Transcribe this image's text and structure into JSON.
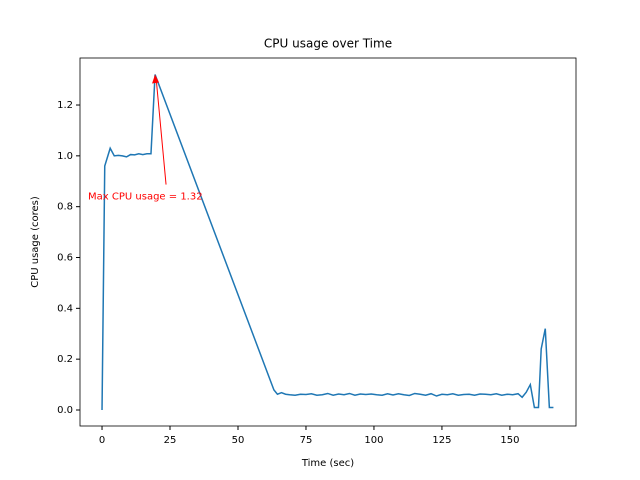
{
  "chart_data": {
    "type": "line",
    "title": "CPU usage over Time",
    "x_label": "Time (sec)",
    "y_label": "CPU usage (cores)",
    "x": [
      0,
      1,
      3,
      4.5,
      6,
      7.5,
      9,
      10.5,
      12,
      13.5,
      15,
      16.5,
      18,
      19.5,
      63.2,
      64.5,
      66,
      67.5,
      69,
      71,
      73,
      75,
      77,
      79,
      81,
      83,
      85,
      87,
      89,
      91,
      93,
      95,
      97,
      99,
      101,
      103,
      105,
      107,
      109,
      111,
      113,
      115,
      117,
      119,
      121,
      123,
      125,
      127,
      129,
      131,
      133,
      135,
      137,
      139,
      141,
      143,
      145,
      147,
      149,
      151,
      153,
      154.5,
      156,
      157.5,
      159,
      160.5,
      161.5,
      163,
      164.5,
      166
    ],
    "series": [
      {
        "name": "CPU usage",
        "color": "#1f77b4",
        "values": [
          0,
          0.96,
          1.03,
          1.0,
          1.002,
          1.0,
          0.996,
          1.005,
          1.004,
          1.008,
          1.005,
          1.008,
          1.008,
          1.32,
          0.079,
          0.062,
          0.068,
          0.062,
          0.06,
          0.058,
          0.062,
          0.061,
          0.064,
          0.058,
          0.06,
          0.065,
          0.058,
          0.063,
          0.06,
          0.065,
          0.058,
          0.063,
          0.061,
          0.063,
          0.06,
          0.058,
          0.064,
          0.059,
          0.064,
          0.06,
          0.057,
          0.065,
          0.062,
          0.058,
          0.064,
          0.055,
          0.062,
          0.06,
          0.064,
          0.058,
          0.061,
          0.062,
          0.058,
          0.063,
          0.062,
          0.06,
          0.064,
          0.058,
          0.062,
          0.06,
          0.064,
          0.05,
          0.07,
          0.1,
          0.01,
          0.01,
          0.24,
          0.32,
          0.01,
          0.01
        ]
      }
    ],
    "xlim": [
      -8.1,
      174.3
    ],
    "ylim": [
      -0.063,
      1.385
    ],
    "xticks": [
      0,
      25,
      50,
      75,
      100,
      125,
      150
    ],
    "yticks": [
      {
        "value": 0,
        "label": "0.0"
      },
      {
        "value": 0.2,
        "label": "0.2"
      },
      {
        "value": 0.4,
        "label": "0.4"
      },
      {
        "value": 0.6,
        "label": "0.6"
      },
      {
        "value": 0.8,
        "label": "0.8"
      },
      {
        "value": 1,
        "label": "1.0"
      },
      {
        "value": 1.2,
        "label": "1.2"
      }
    ],
    "annotation": {
      "text": "Max CPU usage = 1.32",
      "x": 19.5,
      "y": 1.32,
      "color": "red"
    }
  }
}
